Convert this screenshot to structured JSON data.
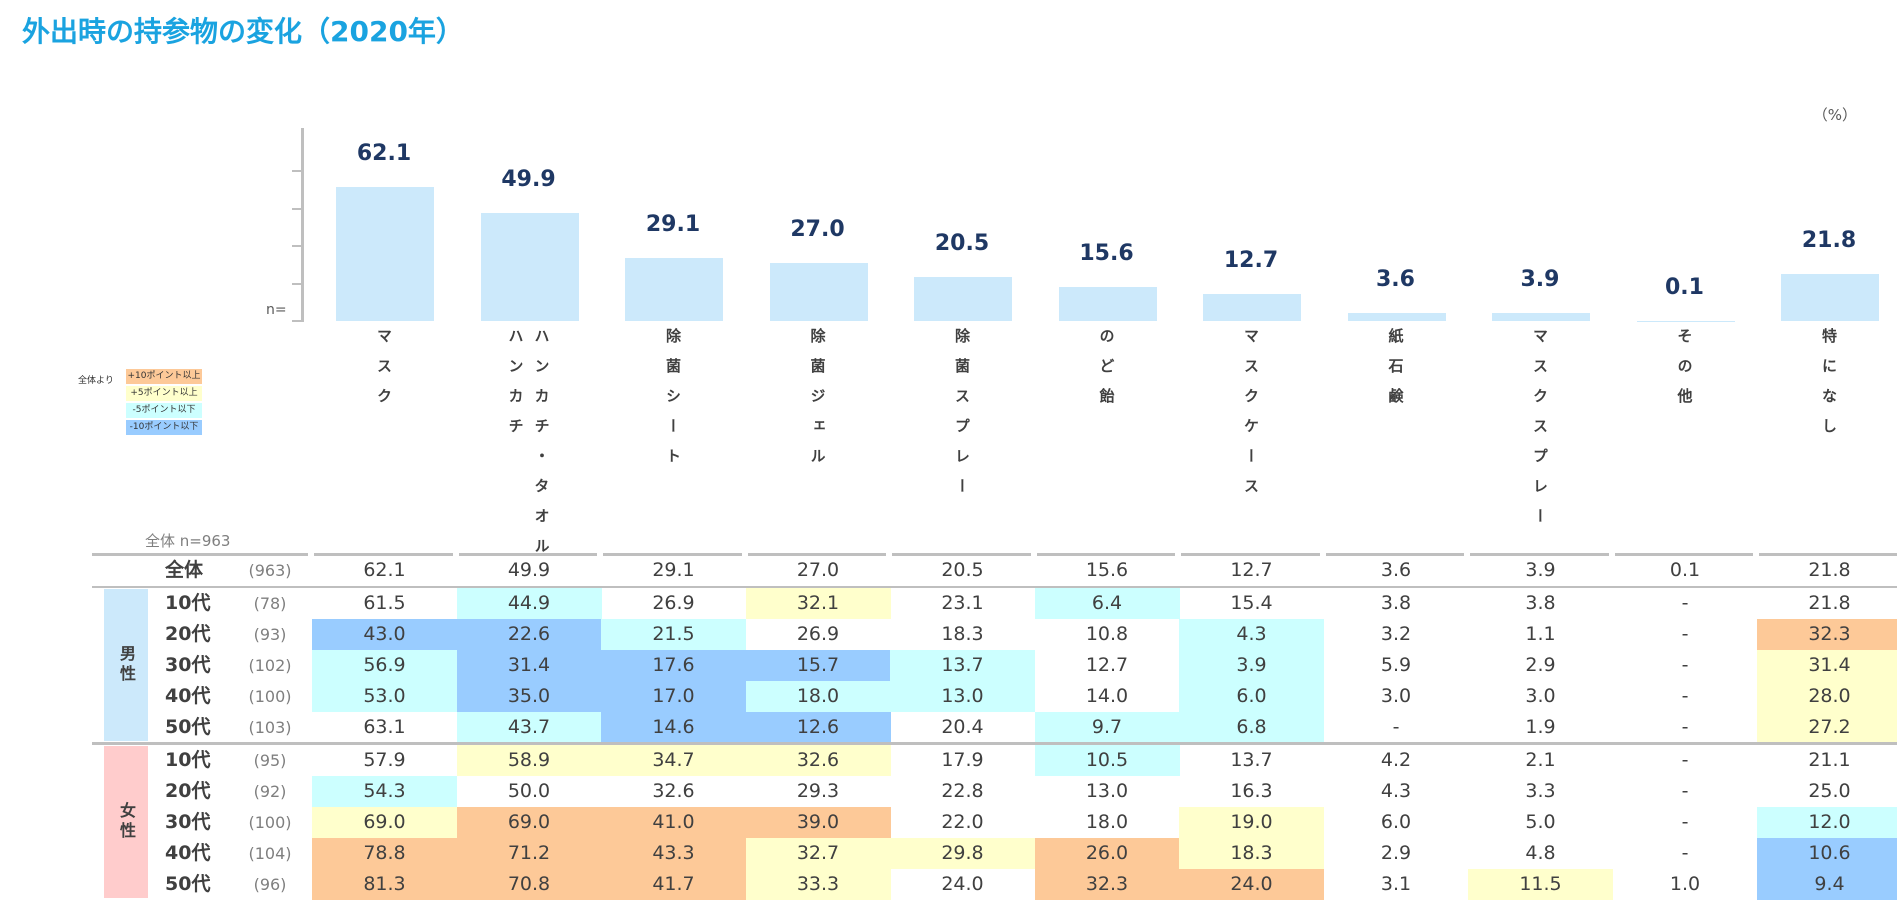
{
  "title": "外出時の持参物の変化（2020年）",
  "unit": "（%）",
  "n_axis_label": "n=",
  "total_label": "全体 n=963",
  "legend": {
    "header": "全体より",
    "items": [
      {
        "label": "+10ポイント以上",
        "color": "#fdc998"
      },
      {
        "label": "+5ポイント以上",
        "color": "#ffffcc"
      },
      {
        "label": "-5ポイント以下",
        "color": "#ccffff"
      },
      {
        "label": "-10ポイント以下",
        "color": "#99ccff"
      }
    ]
  },
  "colors": {
    "o": "#fdc998",
    "y": "#ffffcc",
    "c": "#ccffff",
    "b": "#99ccff",
    "bar": "#cce9fb",
    "male": "#cce9fb",
    "female": "#ffcccc"
  },
  "chart_data": {
    "type": "bar",
    "categories": [
      [
        "マスク"
      ],
      [
        "ハンカチ・タオル",
        "ハンカチ"
      ],
      [
        "除菌シート"
      ],
      [
        "除菌ジェル"
      ],
      [
        "除菌スプレー"
      ],
      [
        "のど飴"
      ],
      [
        "マスクケース"
      ],
      [
        "紙石鹸"
      ],
      [
        "マスクスプレー"
      ],
      [
        "その他"
      ],
      [
        "特になし"
      ]
    ],
    "values": [
      62.1,
      49.9,
      29.1,
      27.0,
      20.5,
      15.6,
      12.7,
      3.6,
      3.9,
      0.1,
      21.8
    ],
    "ylim": [
      0,
      70
    ]
  },
  "table": {
    "total": {
      "label": "全体",
      "n": "(963)",
      "values": [
        "62.1",
        "49.9",
        "29.1",
        "27.0",
        "20.5",
        "15.6",
        "12.7",
        "3.6",
        "3.9",
        "0.1",
        "21.8"
      ]
    },
    "groups": [
      {
        "label": "男性",
        "rows": [
          {
            "age": "10代",
            "n": "(78)",
            "values": [
              "61.5",
              "44.9",
              "26.9",
              "32.1",
              "23.1",
              "6.4",
              "15.4",
              "3.8",
              "3.8",
              "-",
              "21.8"
            ],
            "flags": [
              "",
              "c",
              "",
              "y",
              "",
              "c",
              "",
              "",
              "",
              "",
              ""
            ]
          },
          {
            "age": "20代",
            "n": "(93)",
            "values": [
              "43.0",
              "22.6",
              "21.5",
              "26.9",
              "18.3",
              "10.8",
              "4.3",
              "3.2",
              "1.1",
              "-",
              "32.3"
            ],
            "flags": [
              "b",
              "b",
              "c",
              "",
              "",
              "",
              "c",
              "",
              "",
              "",
              "o"
            ]
          },
          {
            "age": "30代",
            "n": "(102)",
            "values": [
              "56.9",
              "31.4",
              "17.6",
              "15.7",
              "13.7",
              "12.7",
              "3.9",
              "5.9",
              "2.9",
              "-",
              "31.4"
            ],
            "flags": [
              "c",
              "b",
              "b",
              "b",
              "c",
              "",
              "c",
              "",
              "",
              "",
              "y"
            ]
          },
          {
            "age": "40代",
            "n": "(100)",
            "values": [
              "53.0",
              "35.0",
              "17.0",
              "18.0",
              "13.0",
              "14.0",
              "6.0",
              "3.0",
              "3.0",
              "-",
              "28.0"
            ],
            "flags": [
              "c",
              "b",
              "b",
              "c",
              "c",
              "",
              "c",
              "",
              "",
              "",
              "y"
            ]
          },
          {
            "age": "50代",
            "n": "(103)",
            "values": [
              "63.1",
              "43.7",
              "14.6",
              "12.6",
              "20.4",
              "9.7",
              "6.8",
              "-",
              "1.9",
              "-",
              "27.2"
            ],
            "flags": [
              "",
              "c",
              "b",
              "b",
              "",
              "c",
              "c",
              "",
              "",
              "",
              "y"
            ]
          }
        ]
      },
      {
        "label": "女性",
        "rows": [
          {
            "age": "10代",
            "n": "(95)",
            "values": [
              "57.9",
              "58.9",
              "34.7",
              "32.6",
              "17.9",
              "10.5",
              "13.7",
              "4.2",
              "2.1",
              "-",
              "21.1"
            ],
            "flags": [
              "",
              "y",
              "y",
              "y",
              "",
              "c",
              "",
              "",
              "",
              "",
              ""
            ]
          },
          {
            "age": "20代",
            "n": "(92)",
            "values": [
              "54.3",
              "50.0",
              "32.6",
              "29.3",
              "22.8",
              "13.0",
              "16.3",
              "4.3",
              "3.3",
              "-",
              "25.0"
            ],
            "flags": [
              "c",
              "",
              "",
              "",
              "",
              "",
              "",
              "",
              "",
              "",
              ""
            ]
          },
          {
            "age": "30代",
            "n": "(100)",
            "values": [
              "69.0",
              "69.0",
              "41.0",
              "39.0",
              "22.0",
              "18.0",
              "19.0",
              "6.0",
              "5.0",
              "-",
              "12.0"
            ],
            "flags": [
              "y",
              "o",
              "o",
              "o",
              "",
              "",
              "y",
              "",
              "",
              "",
              "c"
            ]
          },
          {
            "age": "40代",
            "n": "(104)",
            "values": [
              "78.8",
              "71.2",
              "43.3",
              "32.7",
              "29.8",
              "26.0",
              "18.3",
              "2.9",
              "4.8",
              "-",
              "10.6"
            ],
            "flags": [
              "o",
              "o",
              "o",
              "y",
              "y",
              "o",
              "y",
              "",
              "",
              "",
              "b"
            ]
          },
          {
            "age": "50代",
            "n": "(96)",
            "values": [
              "81.3",
              "70.8",
              "41.7",
              "33.3",
              "24.0",
              "32.3",
              "24.0",
              "3.1",
              "11.5",
              "1.0",
              "9.4"
            ],
            "flags": [
              "o",
              "o",
              "o",
              "y",
              "",
              "o",
              "o",
              "",
              "y",
              "",
              "b"
            ]
          }
        ]
      }
    ]
  }
}
